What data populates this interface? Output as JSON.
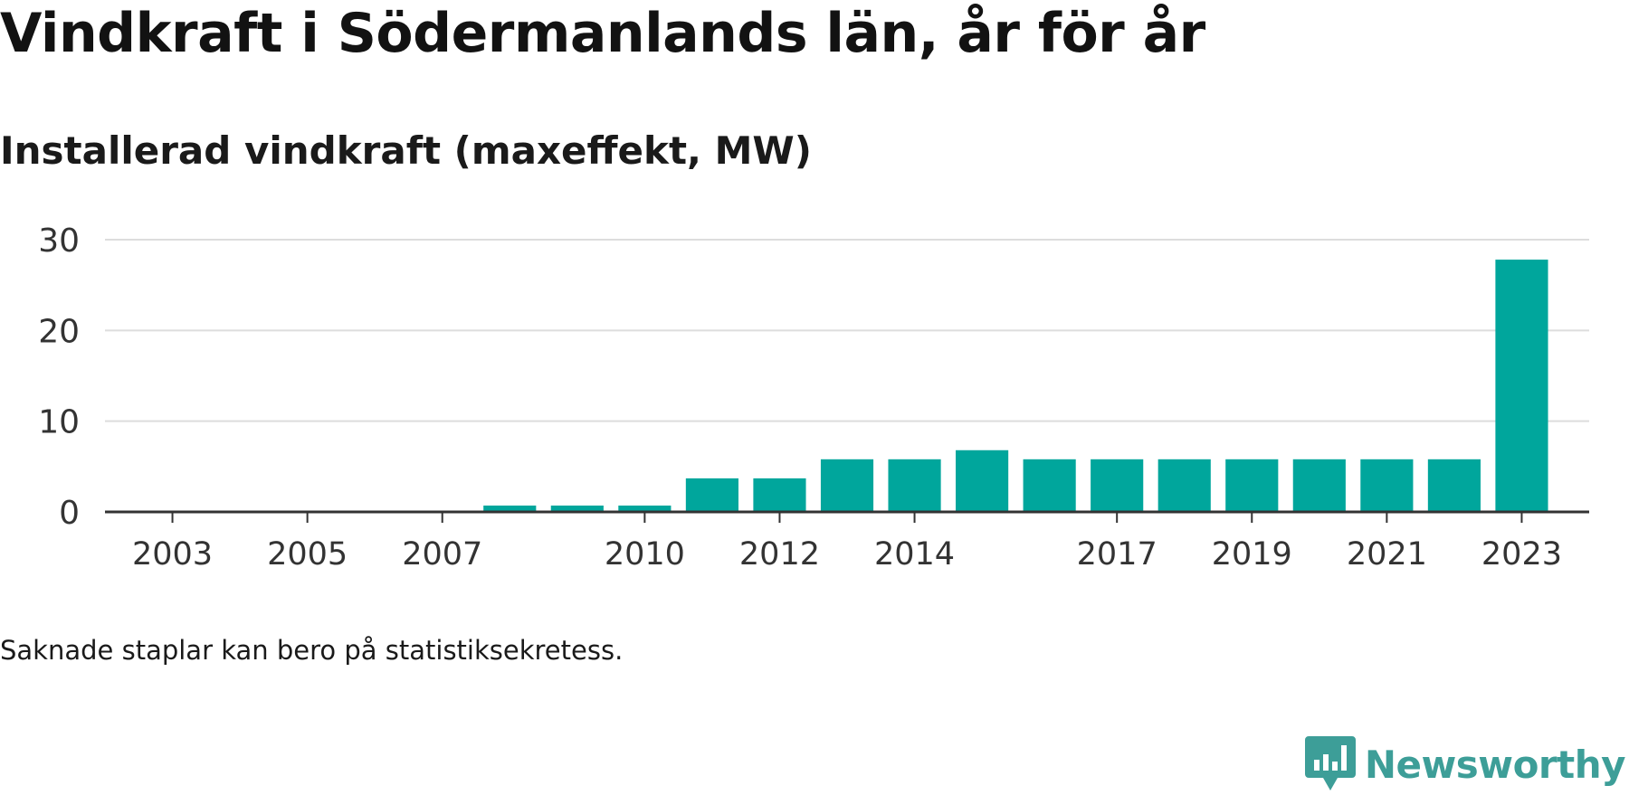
{
  "title": "Vindkraft i Södermanlands län, år för år",
  "subtitle": "Installerad vindkraft (maxeffekt, MW)",
  "note": "Saknade staplar kan bero på statistiksekretess.",
  "brand": {
    "name": "Newsworthy",
    "icon": "newsworthy-logo-icon",
    "color": "#3d9e98"
  },
  "colors": {
    "bar": "#00a69c",
    "grid": "#dddddd",
    "axis": "#333333",
    "tick_text": "#333333"
  },
  "chart_data": {
    "type": "bar",
    "title": "Vindkraft i Södermanlands län, år för år",
    "subtitle": "Installerad vindkraft (maxeffekt, MW)",
    "xlabel": "",
    "ylabel": "",
    "x_range": [
      2002,
      2024
    ],
    "ylim": [
      0,
      30
    ],
    "y_ticks": [
      0,
      10,
      20,
      30
    ],
    "x_tick_labels": [
      "2003",
      "2005",
      "2007",
      "2010",
      "2012",
      "2014",
      "2017",
      "2019",
      "2021",
      "2023"
    ],
    "grid": true,
    "legend": "none",
    "categories": [
      "2008",
      "2009",
      "2010",
      "2011",
      "2012",
      "2013",
      "2014",
      "2015",
      "2016",
      "2017",
      "2018",
      "2019",
      "2020",
      "2021",
      "2022",
      "2023"
    ],
    "values": [
      0.7,
      0.7,
      0.7,
      3.7,
      3.7,
      5.8,
      5.8,
      6.8,
      5.8,
      5.8,
      5.8,
      5.8,
      5.8,
      5.8,
      5.8,
      27.8
    ]
  }
}
